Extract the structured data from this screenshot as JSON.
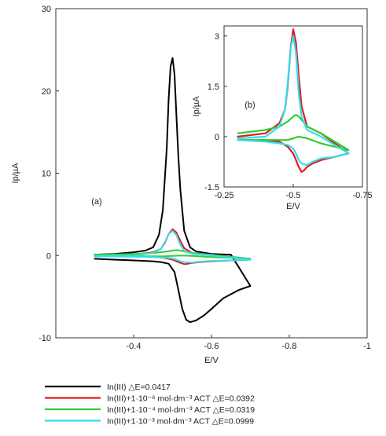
{
  "chart_data": [
    {
      "panel": "(a)",
      "type": "line",
      "xlabel": "E/V",
      "ylabel": "Ip/µA",
      "xlim": [
        -0.2,
        -1.0
      ],
      "ylim": [
        -10,
        30
      ],
      "x_ticks": [
        -0.4,
        -0.6,
        -0.8,
        -1.0
      ],
      "x_tick_labels": [
        "-0.4",
        "-0.6",
        "-0.8",
        "-1"
      ],
      "y_ticks": [
        -10,
        0,
        10,
        20,
        30
      ],
      "y_tick_labels": [
        "-10",
        "0",
        "10",
        "20",
        "30"
      ],
      "grid": false,
      "legend_position": "below",
      "series": [
        {
          "name": "In(III) △E=0.0417",
          "color": "#000000",
          "x": [
            -0.3,
            -0.35,
            -0.4,
            -0.43,
            -0.45,
            -0.465,
            -0.475,
            -0.485,
            -0.49,
            -0.495,
            -0.5,
            -0.505,
            -0.51,
            -0.515,
            -0.52,
            -0.53,
            -0.545,
            -0.56,
            -0.6,
            -0.65,
            -0.7,
            -0.67,
            -0.63,
            -0.6,
            -0.58,
            -0.56,
            -0.545,
            -0.535,
            -0.525,
            -0.515,
            -0.505,
            -0.49,
            -0.47,
            -0.45,
            -0.4,
            -0.35,
            -0.3
          ],
          "y": [
            0.1,
            0.2,
            0.4,
            0.6,
            1.0,
            2.5,
            5.5,
            13,
            19,
            23,
            24,
            22,
            17,
            12,
            8,
            3,
            1.0,
            0.5,
            0.2,
            0.1,
            -3.7,
            -4.2,
            -5.2,
            -6.5,
            -7.3,
            -7.9,
            -8.1,
            -7.8,
            -6.5,
            -4.2,
            -2.0,
            -1.0,
            -0.8,
            -0.7,
            -0.6,
            -0.5,
            -0.4
          ]
        },
        {
          "name": "In(III)+1·10⁻⁶ mol·dm⁻³ ACT △E=0.0392",
          "color": "#e41a1c",
          "x": [
            -0.3,
            -0.4,
            -0.45,
            -0.47,
            -0.48,
            -0.49,
            -0.5,
            -0.51,
            -0.52,
            -0.53,
            -0.55,
            -0.6,
            -0.7,
            -0.65,
            -0.6,
            -0.57,
            -0.55,
            -0.54,
            -0.53,
            -0.52,
            -0.51,
            -0.5,
            -0.48,
            -0.45,
            -0.4,
            -0.3
          ],
          "y": [
            0.0,
            0.1,
            0.4,
            0.8,
            1.5,
            2.6,
            3.2,
            2.8,
            1.8,
            0.9,
            0.3,
            0.1,
            -0.5,
            -0.6,
            -0.7,
            -0.8,
            -0.9,
            -1.0,
            -1.05,
            -0.9,
            -0.7,
            -0.5,
            -0.3,
            -0.15,
            -0.1,
            -0.1
          ]
        },
        {
          "name": "In(III)+1·10⁻⁴ mol·dm⁻³ ACT △E=0.0319",
          "color": "#33cc33",
          "x": [
            -0.3,
            -0.4,
            -0.45,
            -0.48,
            -0.5,
            -0.51,
            -0.52,
            -0.53,
            -0.55,
            -0.6,
            -0.7,
            -0.65,
            -0.6,
            -0.55,
            -0.52,
            -0.5,
            -0.48,
            -0.45,
            -0.4,
            -0.3
          ],
          "y": [
            0.1,
            0.2,
            0.3,
            0.45,
            0.6,
            0.65,
            0.6,
            0.5,
            0.3,
            0.1,
            -0.4,
            -0.3,
            -0.2,
            -0.05,
            0.0,
            -0.05,
            -0.1,
            -0.1,
            -0.1,
            -0.1
          ]
        },
        {
          "name": "In(III)+1·10⁻³ mol·dm⁻³ ACT △E=0.0999",
          "color": "#33ddee",
          "x": [
            -0.3,
            -0.4,
            -0.45,
            -0.47,
            -0.48,
            -0.49,
            -0.5,
            -0.51,
            -0.52,
            -0.53,
            -0.55,
            -0.6,
            -0.7,
            -0.65,
            -0.6,
            -0.57,
            -0.55,
            -0.53,
            -0.52,
            -0.51,
            -0.5,
            -0.48,
            -0.45,
            -0.4,
            -0.3
          ],
          "y": [
            -0.05,
            0.0,
            0.3,
            0.8,
            1.6,
            2.6,
            3.0,
            2.5,
            1.3,
            0.6,
            0.2,
            0.0,
            -0.5,
            -0.6,
            -0.65,
            -0.75,
            -0.85,
            -0.8,
            -0.7,
            -0.5,
            -0.35,
            -0.25,
            -0.2,
            -0.15,
            -0.1
          ]
        }
      ]
    },
    {
      "panel": "(b)",
      "type": "line",
      "xlabel": "E/V",
      "ylabel": "Ip/µA",
      "xlim": [
        -0.25,
        -0.75
      ],
      "ylim": [
        -1.5,
        3.3
      ],
      "x_ticks": [
        -0.25,
        -0.5,
        -0.75
      ],
      "x_tick_labels": [
        "-0.25",
        "-0.5",
        "-0.75"
      ],
      "y_ticks": [
        -1.5,
        0,
        1.5,
        3
      ],
      "y_tick_labels": [
        "-1.5",
        "0",
        "1.5",
        "3"
      ],
      "grid": false,
      "series": [
        {
          "name": "In(III)+1·10⁻⁶ mol·dm⁻³ ACT △E=0.0392",
          "color": "#e41a1c",
          "x": [
            -0.3,
            -0.4,
            -0.45,
            -0.47,
            -0.48,
            -0.49,
            -0.5,
            -0.51,
            -0.52,
            -0.53,
            -0.55,
            -0.6,
            -0.7,
            -0.65,
            -0.6,
            -0.57,
            -0.55,
            -0.54,
            -0.53,
            -0.52,
            -0.51,
            -0.5,
            -0.48,
            -0.45,
            -0.4,
            -0.3
          ],
          "y": [
            0.0,
            0.1,
            0.4,
            0.8,
            1.5,
            2.6,
            3.2,
            2.8,
            1.8,
            0.9,
            0.3,
            0.1,
            -0.5,
            -0.6,
            -0.7,
            -0.8,
            -0.9,
            -1.0,
            -1.05,
            -0.9,
            -0.7,
            -0.5,
            -0.3,
            -0.15,
            -0.1,
            -0.1
          ]
        },
        {
          "name": "In(III)+1·10⁻⁴ mol·dm⁻³ ACT △E=0.0319",
          "color": "#33cc33",
          "x": [
            -0.3,
            -0.4,
            -0.45,
            -0.48,
            -0.5,
            -0.51,
            -0.52,
            -0.53,
            -0.55,
            -0.6,
            -0.7,
            -0.65,
            -0.6,
            -0.55,
            -0.52,
            -0.5,
            -0.48,
            -0.45,
            -0.4,
            -0.3
          ],
          "y": [
            0.1,
            0.2,
            0.3,
            0.45,
            0.6,
            0.65,
            0.6,
            0.5,
            0.3,
            0.1,
            -0.4,
            -0.3,
            -0.2,
            -0.05,
            0.0,
            -0.05,
            -0.1,
            -0.1,
            -0.1,
            -0.1
          ]
        },
        {
          "name": "In(III)+1·10⁻³ mol·dm⁻³ ACT △E=0.0999",
          "color": "#33ddee",
          "x": [
            -0.3,
            -0.4,
            -0.45,
            -0.47,
            -0.48,
            -0.49,
            -0.5,
            -0.51,
            -0.52,
            -0.53,
            -0.55,
            -0.6,
            -0.7,
            -0.65,
            -0.6,
            -0.57,
            -0.55,
            -0.53,
            -0.52,
            -0.51,
            -0.5,
            -0.48,
            -0.45,
            -0.4,
            -0.3
          ],
          "y": [
            -0.05,
            0.0,
            0.3,
            0.8,
            1.6,
            2.6,
            3.0,
            2.5,
            1.3,
            0.6,
            0.2,
            0.0,
            -0.5,
            -0.6,
            -0.65,
            -0.75,
            -0.85,
            -0.8,
            -0.7,
            -0.5,
            -0.35,
            -0.25,
            -0.2,
            -0.15,
            -0.1
          ]
        }
      ]
    }
  ],
  "legend": [
    {
      "label": "In(III) △E=0.0417",
      "color": "#000000"
    },
    {
      "label": "In(III)+1·10⁻⁶ mol·dm⁻³ ACT △E=0.0392",
      "color": "#e41a1c"
    },
    {
      "label": "In(III)+1·10⁻⁴ mol·dm⁻³ ACT △E=0.0319",
      "color": "#33cc33"
    },
    {
      "label": "In(III)+1·10⁻³ mol·dm⁻³ ACT △E=0.0999",
      "color": "#33ddee"
    }
  ]
}
